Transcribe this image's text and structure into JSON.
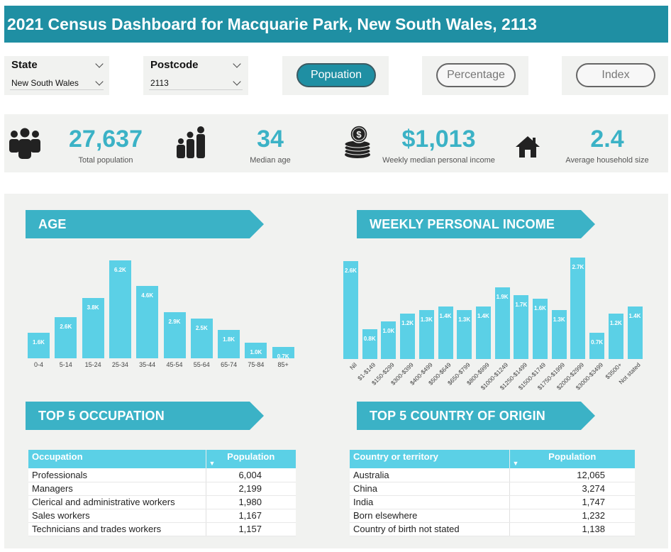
{
  "title": "2021 Census Dashboard for Macquarie Park, New South Wales, 2113",
  "filters": {
    "state": {
      "label": "State",
      "value": "New South Wales"
    },
    "postcode": {
      "label": "Postcode",
      "value": "2113"
    }
  },
  "toggles": [
    {
      "label": "Popuation",
      "active": true
    },
    {
      "label": "Percentage",
      "active": false
    },
    {
      "label": "Index",
      "active": false
    }
  ],
  "kpis": [
    {
      "icon": "group-icon",
      "value": "27,637",
      "label": "Total population"
    },
    {
      "icon": "family-icon",
      "value": "34",
      "label": "Median age"
    },
    {
      "icon": "money-coins-icon",
      "value": "$1,013",
      "label": "Weekly median personal income"
    },
    {
      "icon": "house-icon",
      "value": "2.4",
      "label": "Average household size"
    }
  ],
  "sections": {
    "age": "AGE",
    "income": "WEEKLY PERSONAL INCOME",
    "occupation": "TOP 5 OCCUPATION",
    "country": "TOP 5 COUNTRY OF ORIGIN"
  },
  "chart_data": [
    {
      "type": "bar",
      "title": "AGE",
      "categories": [
        "0-4",
        "5-14",
        "15-24",
        "25-34",
        "35-44",
        "45-54",
        "55-64",
        "65-74",
        "75-84",
        "85+"
      ],
      "values": [
        1600,
        2600,
        3800,
        6200,
        4600,
        2900,
        2500,
        1800,
        1000,
        700
      ],
      "data_labels": [
        "1.6K",
        "2.6K",
        "3.8K",
        "6.2K",
        "4.6K",
        "2.9K",
        "2.5K",
        "1.8K",
        "1.0K",
        "0.7K"
      ],
      "ylim": [
        0,
        6200
      ],
      "grid": false,
      "color": "#5bd0e6"
    },
    {
      "type": "bar",
      "title": "WEEKLY PERSONAL INCOME",
      "categories": [
        "Nil",
        "$1-$149",
        "$150-$299",
        "$300-$399",
        "$400-$499",
        "$500-$649",
        "$650-$799",
        "$800-$999",
        "$1000-$1249",
        "$1250-$1499",
        "$1500-$1749",
        "$1750-$1999",
        "$2000-$2999",
        "$3000-$3499",
        "$3500+",
        "Not stated"
      ],
      "values": [
        2600,
        800,
        1000,
        1200,
        1300,
        1400,
        1300,
        1400,
        1900,
        1700,
        1600,
        1300,
        2700,
        700,
        1200,
        1400
      ],
      "data_labels": [
        "2.6K",
        "0.8K",
        "1.0K",
        "1.2K",
        "1.3K",
        "1.4K",
        "1.3K",
        "1.4K",
        "1.9K",
        "1.7K",
        "1.6K",
        "1.3K",
        "2.7K",
        "0.7K",
        "1.2K",
        "1.4K"
      ],
      "ylim": [
        0,
        2700
      ],
      "grid": false,
      "color": "#5bd0e6"
    }
  ],
  "occupation_table": {
    "headers": [
      "Occupation",
      "Population"
    ],
    "rows": [
      [
        "Professionals",
        "6,004"
      ],
      [
        "Managers",
        "2,199"
      ],
      [
        "Clerical and administrative workers",
        "1,980"
      ],
      [
        "Sales workers",
        "1,167"
      ],
      [
        "Technicians and trades workers",
        "1,157"
      ]
    ]
  },
  "country_table": {
    "headers": [
      "Country or territory",
      "Population"
    ],
    "rows": [
      [
        "Australia",
        "12,065"
      ],
      [
        "China",
        "3,274"
      ],
      [
        "India",
        "1,747"
      ],
      [
        "Born elsewhere",
        "1,232"
      ],
      [
        "Country of birth not stated",
        "1,138"
      ]
    ]
  },
  "colors": {
    "header": "#1f8fa3",
    "accent": "#3bb2c6",
    "bar": "#5bd0e6",
    "panel": "#f1f2f0"
  }
}
